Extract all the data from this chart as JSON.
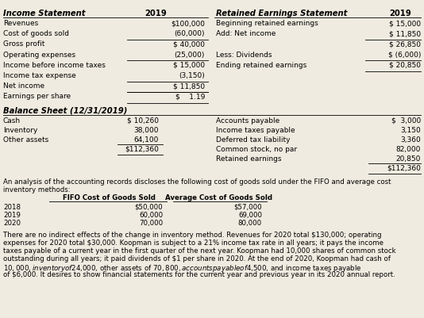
{
  "bg_color": "#f0ebe0",
  "fs": 6.5,
  "fs_bold": 7.2,
  "fs_para": 6.2,
  "is_header": "Income Statement",
  "is_year": "2019",
  "is_rows": [
    {
      "label": "Revenues",
      "value": "$100,000",
      "style": "normal"
    },
    {
      "label": "Cost of goods sold",
      "value": "(60,000)",
      "style": "normal"
    },
    {
      "label": "Gross profit",
      "value": "$ 40,000",
      "style": "single"
    },
    {
      "label": "Operating expenses",
      "value": "(25,000)",
      "style": "normal"
    },
    {
      "label": "Income before income taxes",
      "value": "$ 15,000",
      "style": "single"
    },
    {
      "label": "Income tax expense",
      "value": "(3,150)",
      "style": "normal"
    },
    {
      "label": "Net income",
      "value": "$ 11,850",
      "style": "single_double"
    },
    {
      "label": "Earnings per share",
      "value": "$    1.19",
      "style": "single_double"
    }
  ],
  "re_header": "Retained Earnings Statement",
  "re_year": "2019",
  "re_rows": [
    {
      "label": "Beginning retained earnings",
      "value": "$ 15,000",
      "style": "normal"
    },
    {
      "label": "Add: Net income",
      "value": "$ 11,850",
      "style": "normal"
    },
    {
      "label": "",
      "value": "$ 26,850",
      "style": "single"
    },
    {
      "label": "Less: Dividends",
      "value": "$ (6,000)",
      "style": "normal"
    },
    {
      "label": "Ending retained earnings",
      "value": "$ 20,850",
      "style": "single_double"
    }
  ],
  "bs_header": "Balance Sheet (12/31/2019)",
  "bs_left": [
    {
      "label": "Cash",
      "value": "$ 10,260",
      "style": "normal"
    },
    {
      "label": "Inventory",
      "value": "38,000",
      "style": "normal"
    },
    {
      "label": "Other assets",
      "value": "64,100",
      "style": "normal"
    },
    {
      "label": "",
      "value": "$112,360",
      "style": "single_double"
    }
  ],
  "bs_right": [
    {
      "label": "Accounts payable",
      "value": "$  3,000",
      "style": "normal"
    },
    {
      "label": "Income taxes payable",
      "value": "3,150",
      "style": "normal"
    },
    {
      "label": "Deferred tax liability",
      "value": "3,360",
      "style": "normal"
    },
    {
      "label": "Common stock, no par",
      "value": "82,000",
      "style": "normal"
    },
    {
      "label": "Retained earnings",
      "value": "20,850",
      "style": "normal"
    },
    {
      "label": "",
      "value": "$112,360",
      "style": "single_double"
    }
  ],
  "analysis_line1": "An analysis of the accounting records discloses the following cost of goods sold under the FIFO and average cost",
  "analysis_line2": "inventory methods:",
  "fifo_h1": "FIFO Cost of Goods Sold",
  "fifo_h2": "Average Cost of Goods Sold",
  "fifo_rows": [
    {
      "year": "2018",
      "fifo": "$50,000",
      "avg": "$57,000"
    },
    {
      "year": "2019",
      "fifo": "60,000",
      "avg": "69,000"
    },
    {
      "year": "2020",
      "fifo": "70,000",
      "avg": "80,000"
    }
  ],
  "para_lines": [
    "There are no indirect effects of the change in inventory method. Revenues for 2020 total $130,000; operating",
    "expenses for 2020 total $30,000. Koopman is subject to a 21% income tax rate in all years; it pays the income",
    "taxes payable of a current year in the first quarter of the next year. Koopman had 10,000 shares of common stock",
    "outstanding during all years; it paid dividends of $1 per share in 2020. At the end of 2020, Koopman had cash of",
    "$10,000, inventory of $24,000, other assets of $70,800, accounts payable of $4,500, and income taxes payable",
    "of $6,000. It desires to show financial statements for the current year and previous year in its 2020 annual report."
  ]
}
